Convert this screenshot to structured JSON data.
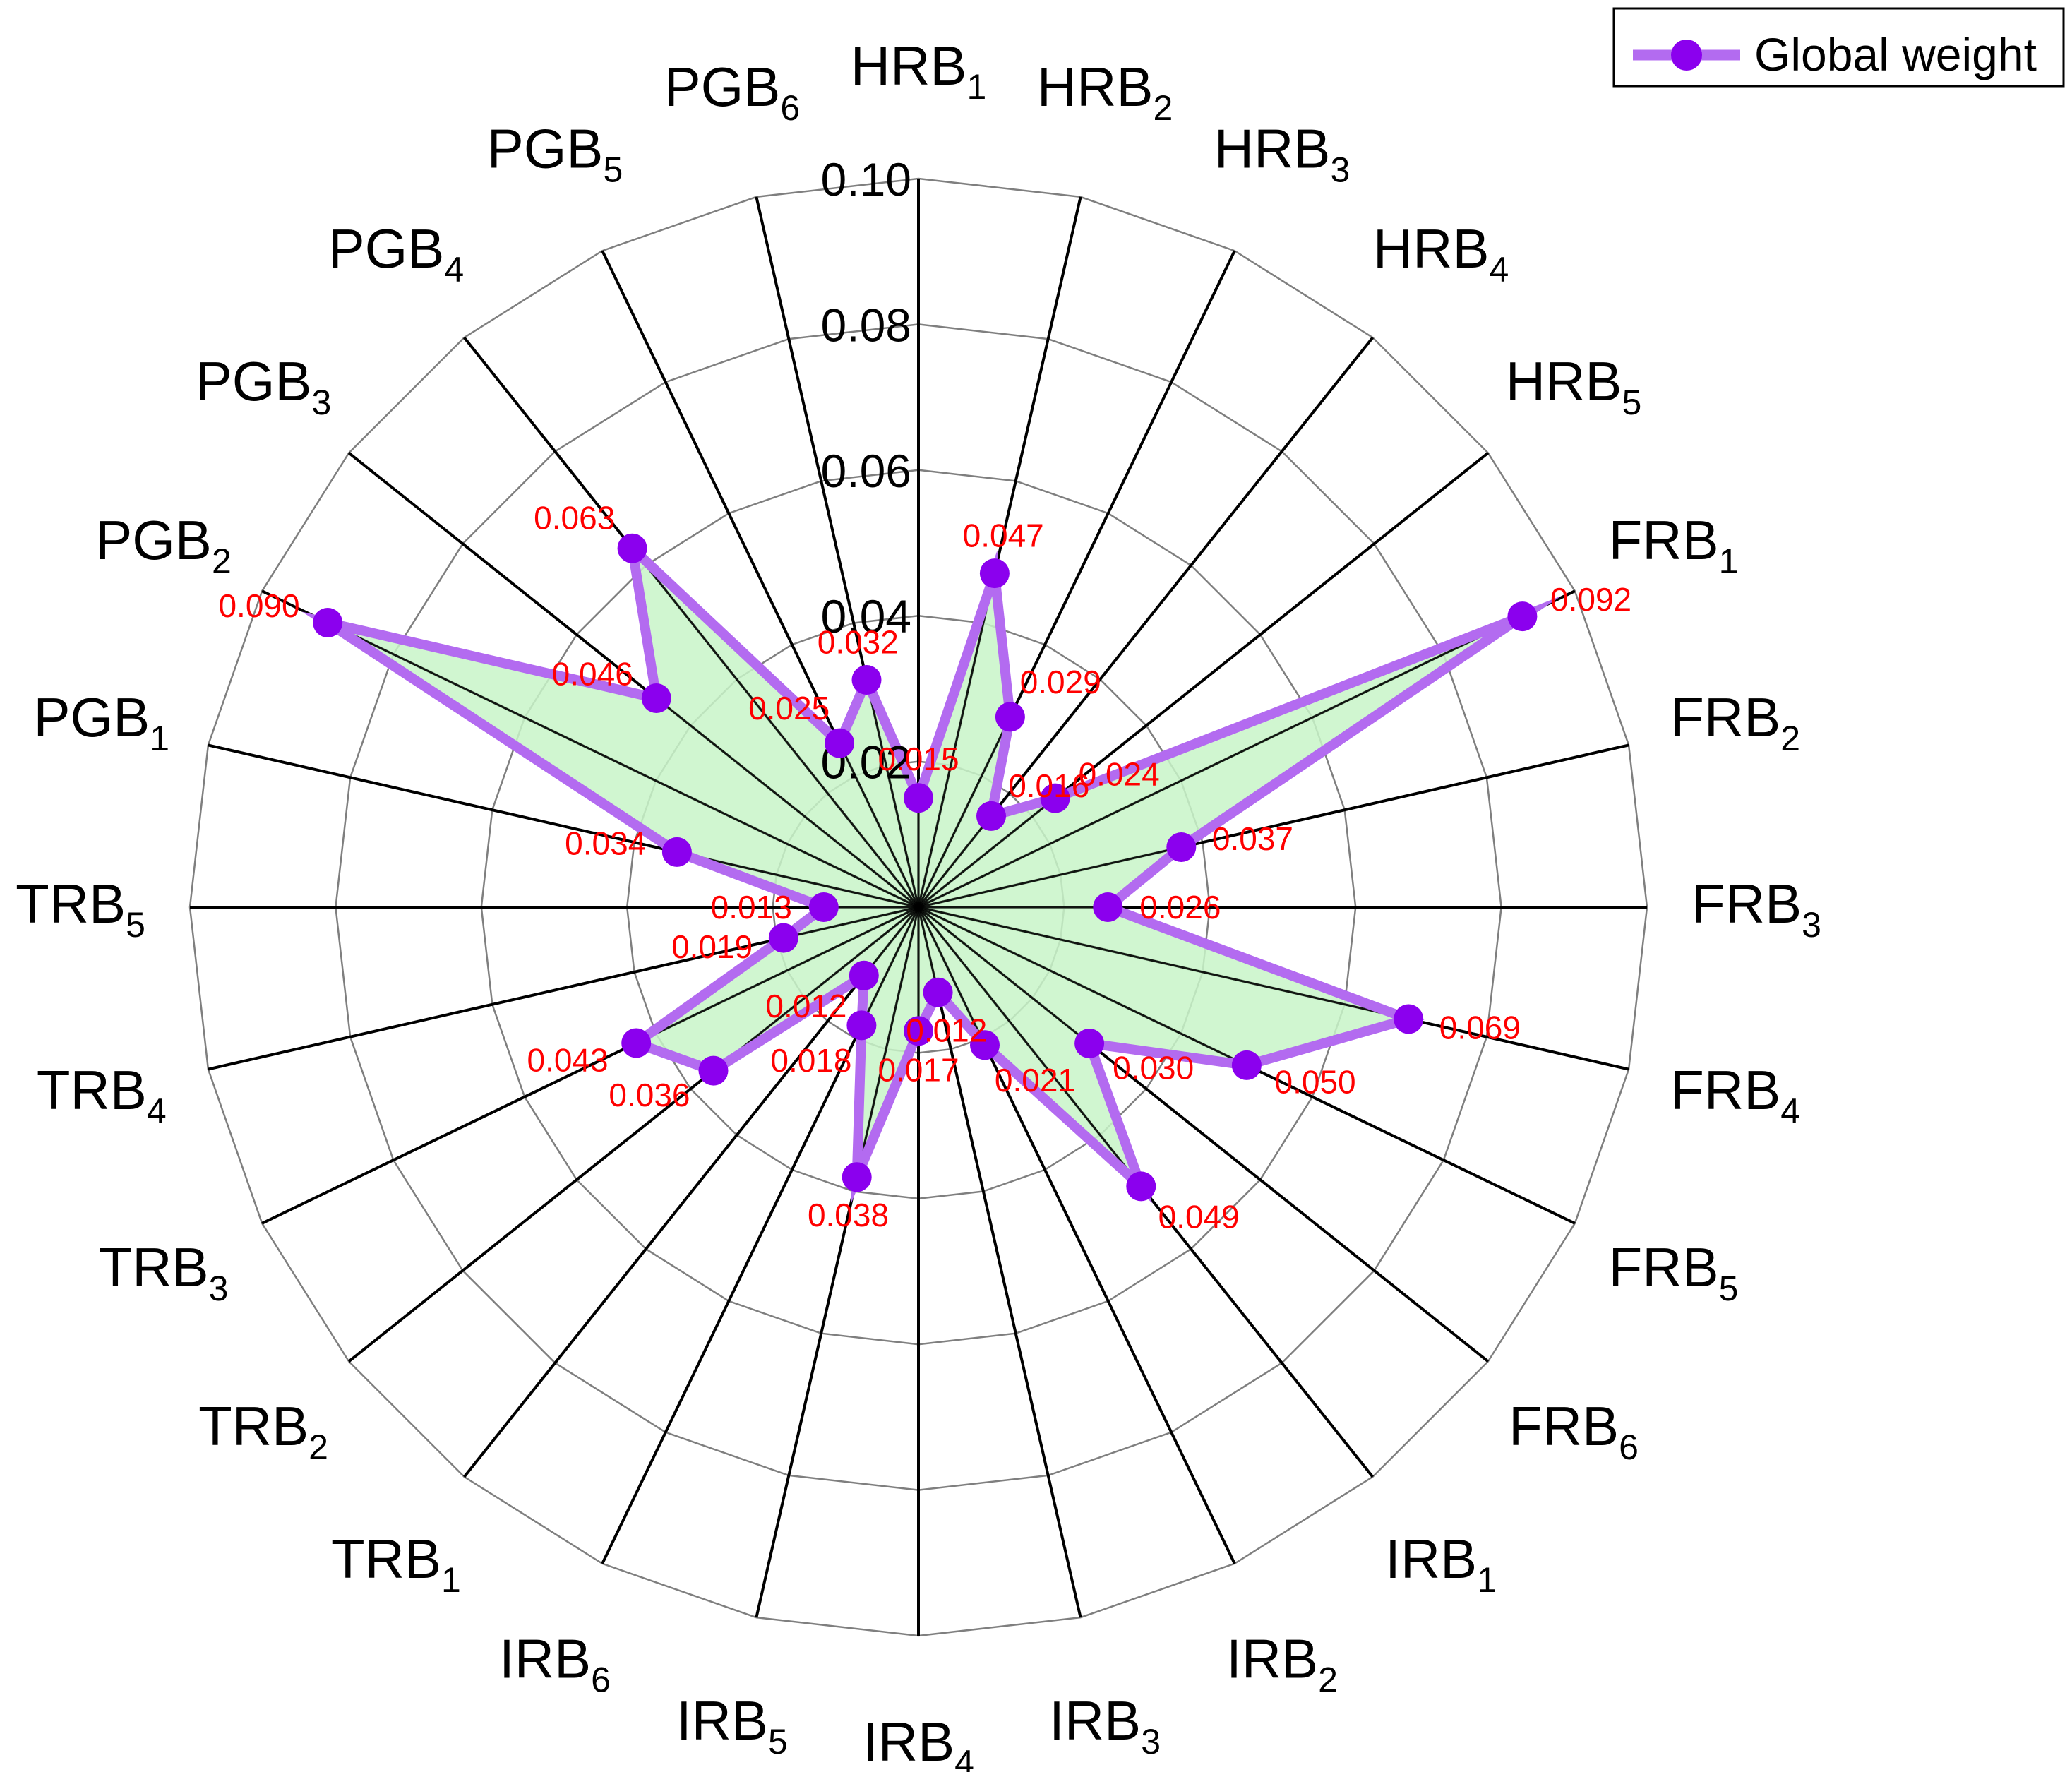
{
  "chart_data": {
    "type": "radar",
    "title": "",
    "series": [
      {
        "name": "Global weight",
        "values": [
          0.015,
          0.047,
          0.029,
          0.016,
          0.024,
          0.092,
          0.037,
          0.026,
          0.069,
          0.05,
          0.03,
          0.049,
          0.021,
          0.012,
          0.017,
          0.038,
          0.018,
          0.012,
          0.036,
          0.043,
          0.019,
          0.013,
          0.034,
          0.09,
          0.046,
          0.063,
          0.025,
          0.032
        ]
      }
    ],
    "categories": [
      {
        "base": "HRB",
        "sub": "1"
      },
      {
        "base": "HRB",
        "sub": "2"
      },
      {
        "base": "HRB",
        "sub": "3"
      },
      {
        "base": "HRB",
        "sub": "4"
      },
      {
        "base": "HRB",
        "sub": "5"
      },
      {
        "base": "FRB",
        "sub": "1"
      },
      {
        "base": "FRB",
        "sub": "2"
      },
      {
        "base": "FRB",
        "sub": "3"
      },
      {
        "base": "FRB",
        "sub": "4"
      },
      {
        "base": "FRB",
        "sub": "5"
      },
      {
        "base": "FRB",
        "sub": "6"
      },
      {
        "base": "IRB",
        "sub": "1"
      },
      {
        "base": "IRB",
        "sub": "2"
      },
      {
        "base": "IRB",
        "sub": "3"
      },
      {
        "base": "IRB",
        "sub": "4"
      },
      {
        "base": "IRB",
        "sub": "5"
      },
      {
        "base": "IRB",
        "sub": "6"
      },
      {
        "base": "TRB",
        "sub": "1"
      },
      {
        "base": "TRB",
        "sub": "2"
      },
      {
        "base": "TRB",
        "sub": "3"
      },
      {
        "base": "TRB",
        "sub": "4"
      },
      {
        "base": "TRB",
        "sub": "5"
      },
      {
        "base": "PGB",
        "sub": "1"
      },
      {
        "base": "PGB",
        "sub": "2"
      },
      {
        "base": "PGB",
        "sub": "3"
      },
      {
        "base": "PGB",
        "sub": "4"
      },
      {
        "base": "PGB",
        "sub": "5"
      },
      {
        "base": "PGB",
        "sub": "6"
      }
    ],
    "value_labels": [
      "0.015",
      "0.047",
      "0.029",
      "0.016",
      "0.024",
      "0.092",
      "0.037",
      "0.026",
      "0.069",
      "0.050",
      "0.030",
      "0.049",
      "0.021",
      "0.012",
      "0.017",
      "0.038",
      "0.018",
      "0.012",
      "0.036",
      "0.043",
      "0.019",
      "0.013",
      "0.034",
      "0.090",
      "0.046",
      "0.063",
      "0.025",
      "0.032"
    ],
    "radial_ticks": [
      "0.02",
      "0.04",
      "0.06",
      "0.08",
      "0.10"
    ],
    "rmax": 0.1,
    "grid": true,
    "legend_position": "top-right",
    "colors": {
      "series_line": "#b36bf0",
      "series_marker": "#8b00ee",
      "fill": "#c8f5c8",
      "value_label": "#ff0000",
      "spoke": "#000000",
      "ring": "#7f7f7f"
    }
  },
  "legend": {
    "label": "Global weight"
  }
}
